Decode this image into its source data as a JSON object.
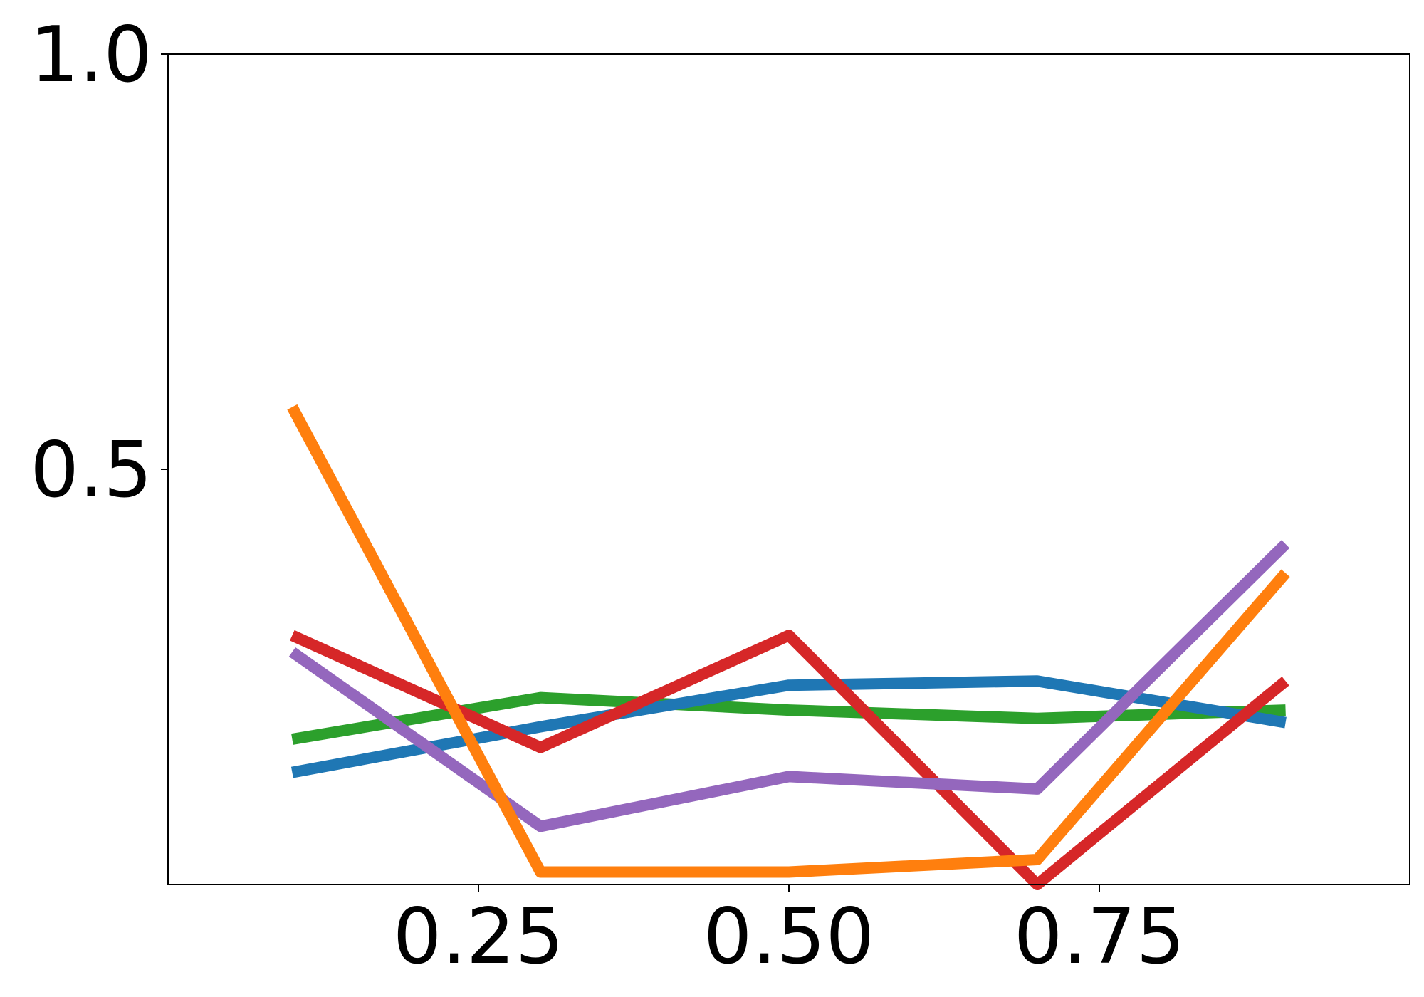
{
  "chart_data": {
    "type": "line",
    "title": "",
    "xlabel": "",
    "ylabel": "",
    "xlim": [
      0.0,
      1.0
    ],
    "ylim": [
      0.0,
      1.0
    ],
    "grid": false,
    "legend": "none",
    "x": [
      0.1,
      0.3,
      0.5,
      0.7,
      0.9
    ],
    "xticks": [
      {
        "value": 0.25,
        "label": "0.25"
      },
      {
        "value": 0.5,
        "label": "0.50"
      },
      {
        "value": 0.75,
        "label": "0.75"
      }
    ],
    "yticks": [
      {
        "value": 0.5,
        "label": "0.5"
      },
      {
        "value": 1.0,
        "label": "1.0"
      }
    ],
    "series": [
      {
        "color": "#2ca02c",
        "values": [
          0.175,
          0.225,
          0.21,
          0.2,
          0.21
        ]
      },
      {
        "color": "#1f77b4",
        "values": [
          0.135,
          0.19,
          0.24,
          0.245,
          0.195
        ]
      },
      {
        "color": "#d62728",
        "values": [
          0.3,
          0.165,
          0.3,
          0.0,
          0.245
        ]
      },
      {
        "color": "#9467bd",
        "values": [
          0.28,
          0.07,
          0.13,
          0.115,
          0.41
        ]
      },
      {
        "color": "#ff7f0e",
        "values": [
          0.575,
          0.015,
          0.015,
          0.03,
          0.375
        ]
      }
    ]
  }
}
